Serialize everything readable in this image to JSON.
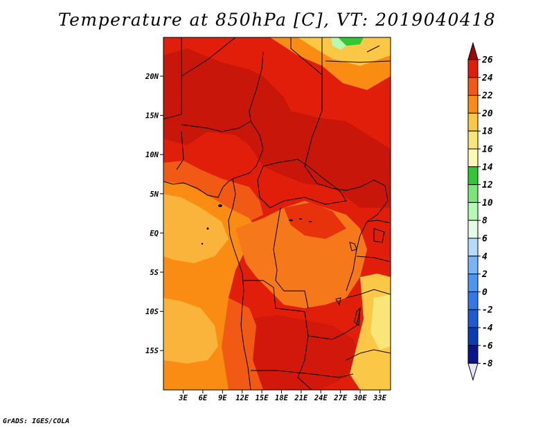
{
  "title": "Temperature at 850hPa [C], VT: 2019040418",
  "credit": "GrADS: IGES/COLA",
  "map": {
    "lat_labels": [
      "20N",
      "15N",
      "10N",
      "5N",
      "EQ",
      "5S",
      "10S",
      "15S"
    ],
    "lon_labels": [
      "3E",
      "6E",
      "9E",
      "12E",
      "15E",
      "18E",
      "21E",
      "24E",
      "27E",
      "30E",
      "33E"
    ]
  },
  "colorbar": {
    "labels": [
      "26",
      "24",
      "22",
      "20",
      "18",
      "16",
      "14",
      "12",
      "10",
      "8",
      "6",
      "4",
      "2",
      "0",
      "-2",
      "-4",
      "-6",
      "-8"
    ],
    "colors": [
      "#a0000a",
      "#e01e0a",
      "#f05a14",
      "#fa8c14",
      "#fac846",
      "#fae678",
      "#fafab4",
      "#32c832",
      "#78e678",
      "#b4fab4",
      "#e6fae6",
      "#b4dcfa",
      "#78b4fa",
      "#4b96f0",
      "#3278e6",
      "#1e5ad2",
      "#0a3cb4",
      "#0a148c",
      "#000050",
      "#e6e6fa"
    ]
  }
}
